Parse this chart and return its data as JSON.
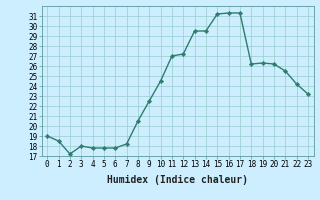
{
  "x": [
    0,
    1,
    2,
    3,
    4,
    5,
    6,
    7,
    8,
    9,
    10,
    11,
    12,
    13,
    14,
    15,
    16,
    17,
    18,
    19,
    20,
    21,
    22,
    23
  ],
  "y": [
    19,
    18.5,
    17.2,
    18,
    17.8,
    17.8,
    17.8,
    18.2,
    20.5,
    22.5,
    24.5,
    27,
    27.2,
    29.5,
    29.5,
    31.2,
    31.3,
    31.3,
    26.2,
    26.3,
    26.2,
    25.5,
    24.2,
    23.2
  ],
  "line_color": "#2e7d6e",
  "marker": "D",
  "marker_size": 2.2,
  "background_color": "#cceeff",
  "grid_color": "#99cccc",
  "xlabel": "Humidex (Indice chaleur)",
  "ylim": [
    17,
    32
  ],
  "xlim": [
    -0.5,
    23.5
  ],
  "yticks": [
    17,
    18,
    19,
    20,
    21,
    22,
    23,
    24,
    25,
    26,
    27,
    28,
    29,
    30,
    31
  ],
  "xticks": [
    0,
    1,
    2,
    3,
    4,
    5,
    6,
    7,
    8,
    9,
    10,
    11,
    12,
    13,
    14,
    15,
    16,
    17,
    18,
    19,
    20,
    21,
    22,
    23
  ],
  "xlabel_fontsize": 7,
  "tick_fontsize": 5.5,
  "line_width": 1.0
}
